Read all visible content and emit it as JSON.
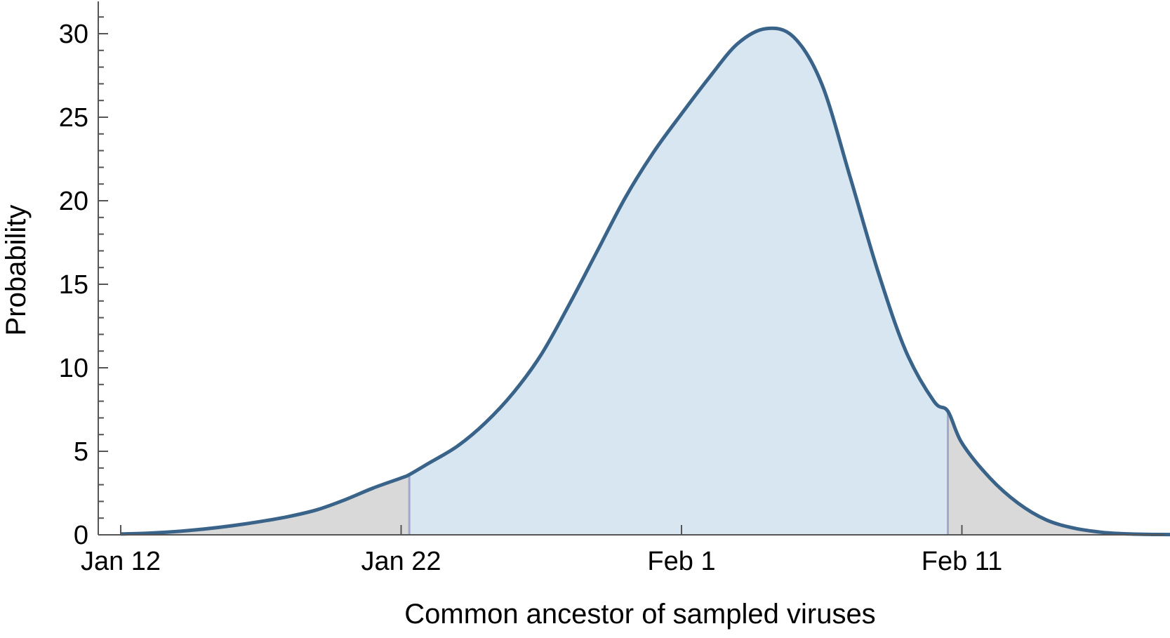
{
  "chart_data": {
    "type": "area",
    "title": "",
    "xlabel": "Common ancestor of sampled viruses",
    "ylabel": "Probability",
    "x_axis_kind": "date",
    "x_ticks": [
      {
        "date": "2020-01-12",
        "label": "Jan 12"
      },
      {
        "date": "2020-01-22",
        "label": "Jan 22"
      },
      {
        "date": "2020-02-01",
        "label": "Feb 1"
      },
      {
        "date": "2020-02-11",
        "label": "Feb 11"
      }
    ],
    "y_ticks": [
      0,
      5,
      10,
      15,
      20,
      25,
      30
    ],
    "ylim": [
      0,
      31.5
    ],
    "xlim": [
      "2020-01-11 09:00",
      "2020-02-21 12:00"
    ],
    "series": [
      {
        "x": [
          "2020-01-12 00:00",
          "2020-01-13 00:00",
          "2020-01-14 00:00",
          "2020-01-15 00:00",
          "2020-01-16 00:00",
          "2020-01-17 00:00",
          "2020-01-18 00:00",
          "2020-01-19 00:00",
          "2020-01-20 00:00",
          "2020-01-21 00:00",
          "2020-01-22 00:00",
          "2020-01-22 07:00",
          "2020-01-23 00:00",
          "2020-01-24 00:00",
          "2020-01-25 00:00",
          "2020-01-26 00:00",
          "2020-01-27 00:00",
          "2020-01-28 00:00",
          "2020-01-29 00:00",
          "2020-01-30 00:00",
          "2020-01-31 00:00",
          "2020-02-01 00:00",
          "2020-02-02 00:00",
          "2020-02-03 00:00",
          "2020-02-04 00:00",
          "2020-02-05 00:00",
          "2020-02-06 00:00",
          "2020-02-07 00:00",
          "2020-02-08 00:00",
          "2020-02-09 00:00",
          "2020-02-10 00:00",
          "2020-02-10 12:00",
          "2020-02-11 00:00",
          "2020-02-12 00:00",
          "2020-02-13 00:00",
          "2020-02-14 00:00",
          "2020-02-15 00:00",
          "2020-02-16 00:00",
          "2020-02-17 00:00",
          "2020-02-18 00:00",
          "2020-02-19 00:00",
          "2020-02-20 00:00",
          "2020-02-21 00:00"
        ],
        "y": [
          0.05,
          0.1,
          0.2,
          0.35,
          0.55,
          0.8,
          1.1,
          1.5,
          2.1,
          2.8,
          3.4,
          3.6,
          4.3,
          5.3,
          6.7,
          8.5,
          10.8,
          13.8,
          17.0,
          20.2,
          22.9,
          25.2,
          27.4,
          29.4,
          30.3,
          29.8,
          27.0,
          21.5,
          15.8,
          11.0,
          8.0,
          7.4,
          5.5,
          3.4,
          1.9,
          0.9,
          0.4,
          0.15,
          0.05,
          0.02,
          0.01,
          0.0,
          0.0
        ]
      }
    ],
    "credible_interval": {
      "lower": "2020-01-22 07:00",
      "upper": "2020-02-10 12:00"
    },
    "colors": {
      "line": "#3a6389",
      "interval_fill": "#d8e6f2",
      "tail_fill": "#d9d9d9",
      "interval_edge": "#a2a8cc",
      "axis": "#555555"
    },
    "grid": false,
    "legend": "none"
  }
}
